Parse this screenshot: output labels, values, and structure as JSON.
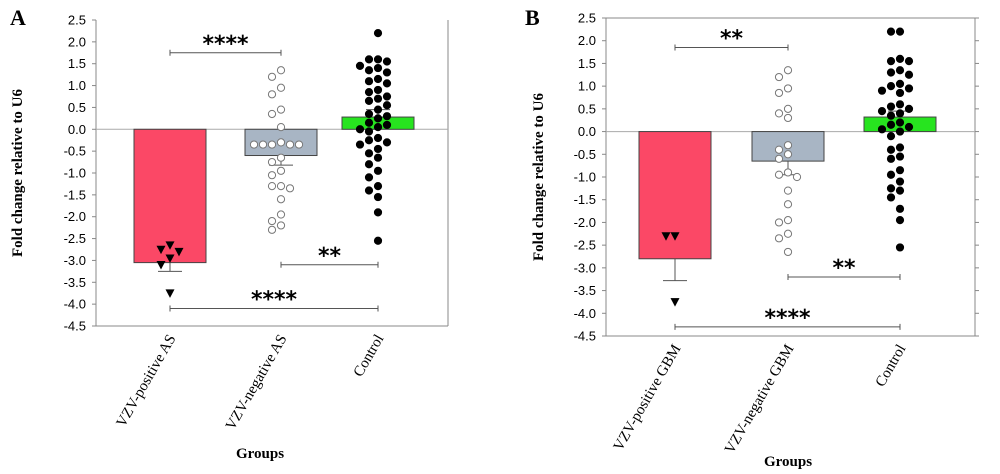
{
  "chart_data": [
    {
      "panel": "A",
      "type": "bar",
      "ylabel": "Fold change relative to U6",
      "xlabel": "Groups",
      "ylim": [
        -4.5,
        2.5
      ],
      "yticks": [
        "2.5",
        "2.0",
        "1.5",
        "1.0",
        "0.5",
        "0.0",
        "-0.5",
        "-1.0",
        "-1.5",
        "-2.0",
        "-2.5",
        "-3.0",
        "-3.5",
        "-4.0",
        "-4.5"
      ],
      "categories": [
        "VZV-positive AS",
        "VZV-negative AS",
        "Control"
      ],
      "values": [
        -3.05,
        -0.6,
        0.28
      ],
      "error_bars": [
        [
          -3.25,
          -3.05
        ],
        [
          -0.82,
          -0.6
        ],
        [
          0.28,
          0.45
        ]
      ],
      "colors": [
        "#fb4866",
        "#a8b5c4",
        "#27e41f"
      ],
      "points": [
        {
          "marker": "triangle",
          "fill": "#000000",
          "values": [
            -2.65,
            -2.75,
            -2.8,
            -2.95,
            -3.1,
            -3.75
          ]
        },
        {
          "marker": "circle",
          "fill": "#ffffff",
          "values": [
            1.35,
            1.2,
            0.95,
            0.8,
            0.45,
            0.35,
            0.05,
            -0.3,
            -0.35,
            -0.35,
            -0.35,
            -0.35,
            -0.35,
            -0.65,
            -0.75,
            -0.95,
            -1.05,
            -1.3,
            -1.3,
            -1.35,
            -1.6,
            -1.95,
            -2.1,
            -2.2,
            -2.3
          ]
        },
        {
          "marker": "circle",
          "fill": "#000000",
          "values": [
            2.2,
            1.6,
            1.6,
            1.55,
            1.45,
            1.4,
            1.35,
            1.3,
            1.15,
            1.1,
            1.05,
            0.9,
            0.85,
            0.75,
            0.7,
            0.65,
            0.55,
            0.45,
            0.35,
            0.3,
            0.25,
            0.15,
            0.1,
            0.05,
            0.0,
            -0.05,
            -0.2,
            -0.25,
            -0.3,
            -0.35,
            -0.45,
            -0.55,
            -0.65,
            -0.8,
            -0.95,
            -1.1,
            -1.3,
            -1.4,
            -1.55,
            -1.9,
            -2.55
          ]
        }
      ],
      "significance": [
        {
          "label": "****",
          "from": 0,
          "to": 1,
          "y": 1.75
        },
        {
          "label": "**",
          "from": 1,
          "to": 2,
          "y": -3.1
        },
        {
          "label": "****",
          "from": 0,
          "to": 2,
          "y": -4.1
        }
      ]
    },
    {
      "panel": "B",
      "type": "bar",
      "ylabel": "Fold change relative to U6",
      "xlabel": "Groups",
      "ylim": [
        -4.5,
        2.5
      ],
      "yticks": [
        "2.5",
        "2.0",
        "1.5",
        "1.0",
        "0.5",
        "0.0",
        "-0.5",
        "-1.0",
        "-1.5",
        "-2.0",
        "-2.5",
        "-3.0",
        "-3.5",
        "-4.0",
        "-4.5"
      ],
      "categories": [
        "VZV-positive GBM",
        "VZV-negative GBM",
        "Control"
      ],
      "values": [
        -2.8,
        -0.65,
        0.32
      ],
      "error_bars": [
        [
          -3.28,
          -2.8
        ],
        [
          -0.95,
          -0.65
        ],
        [
          0.32,
          0.45
        ]
      ],
      "colors": [
        "#fb4866",
        "#a8b5c4",
        "#27e41f"
      ],
      "points": [
        {
          "marker": "triangle",
          "fill": "#000000",
          "values": [
            -2.3,
            -2.3,
            -3.75
          ]
        },
        {
          "marker": "circle",
          "fill": "#ffffff",
          "values": [
            1.35,
            1.2,
            0.95,
            0.85,
            0.5,
            0.4,
            0.3,
            -0.3,
            -0.4,
            -0.5,
            -0.6,
            -0.9,
            -0.95,
            -1.0,
            -1.3,
            -1.6,
            -1.95,
            -2.0,
            -2.25,
            -2.35,
            -2.65
          ]
        },
        {
          "marker": "circle",
          "fill": "#000000",
          "values": [
            2.2,
            2.2,
            1.6,
            1.55,
            1.55,
            1.35,
            1.3,
            1.25,
            1.05,
            1.0,
            0.95,
            0.9,
            0.85,
            0.6,
            0.55,
            0.5,
            0.45,
            0.4,
            0.35,
            0.2,
            0.15,
            0.1,
            0.05,
            0.0,
            -0.1,
            -0.35,
            -0.4,
            -0.55,
            -0.6,
            -0.85,
            -0.95,
            -1.1,
            -1.25,
            -1.3,
            -1.45,
            -1.7,
            -1.95,
            -2.55
          ]
        }
      ],
      "significance": [
        {
          "label": "**",
          "from": 0,
          "to": 1,
          "y": 1.85
        },
        {
          "label": "**",
          "from": 1,
          "to": 2,
          "y": -3.2
        },
        {
          "label": "****",
          "from": 0,
          "to": 2,
          "y": -4.3
        }
      ]
    }
  ]
}
